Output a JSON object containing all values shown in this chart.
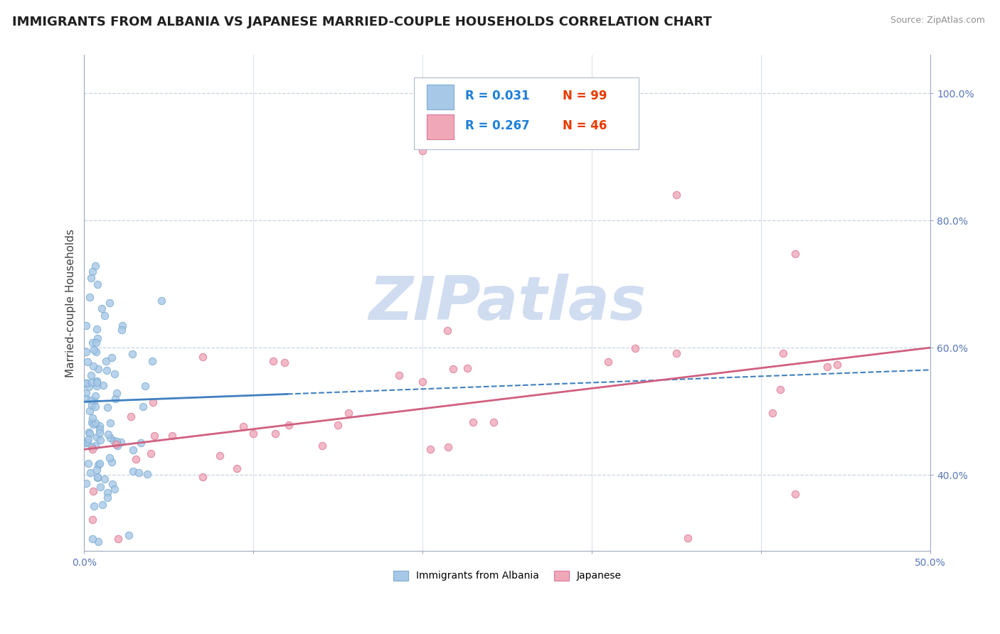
{
  "title": "IMMIGRANTS FROM ALBANIA VS JAPANESE MARRIED-COUPLE HOUSEHOLDS CORRELATION CHART",
  "source_text": "Source: ZipAtlas.com",
  "ylabel": "Married-couple Households",
  "xlim": [
    0.0,
    0.5
  ],
  "ylim": [
    0.28,
    1.06
  ],
  "ytick_labels_right": [
    "40.0%",
    "60.0%",
    "80.0%",
    "100.0%"
  ],
  "ytick_positions_right": [
    0.4,
    0.6,
    0.8,
    1.0
  ],
  "albania_color": "#A8C8E8",
  "albania_edge": "#7AACD0",
  "japanese_color": "#F0A8B8",
  "japanese_edge": "#D87898",
  "legend_R_color": "#1E7FD8",
  "legend_N_color": "#E83A00",
  "watermark": "ZIPatlas",
  "watermark_color": "#D0DCF0",
  "trend_albania_color": "#4080C0",
  "trend_japanese_color": "#D06080",
  "grid_color": "#C8D4E4",
  "background_color": "#FFFFFF",
  "title_fontsize": 13,
  "axis_label_fontsize": 11,
  "tick_fontsize": 10,
  "tick_color": "#5878B8"
}
